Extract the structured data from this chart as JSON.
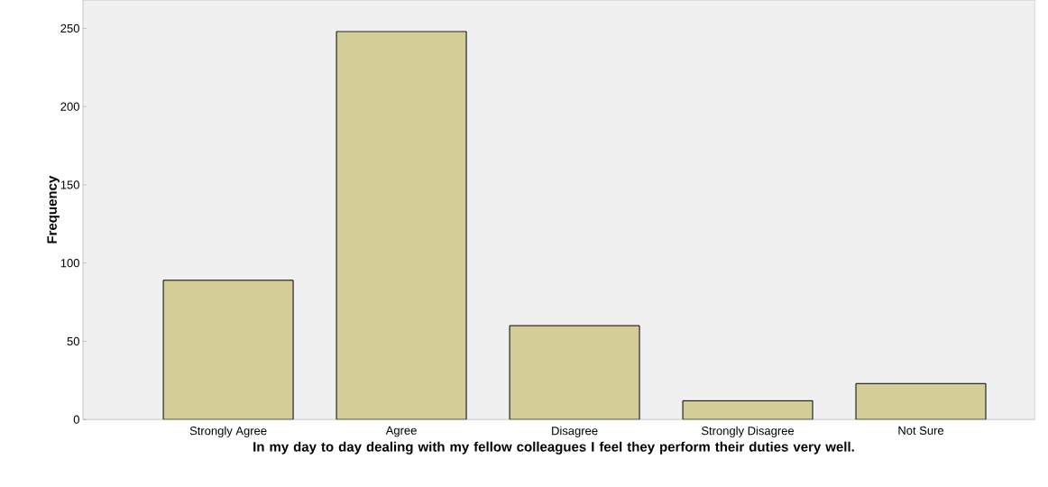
{
  "chart_data": {
    "type": "bar",
    "xlabel": "In my day to day dealing with my fellow colleagues I feel they perform their duties very well.",
    "ylabel": "Frequency",
    "categories": [
      "Strongly Agree",
      "Agree",
      "Disagree",
      "Strongly Disagree",
      "Not Sure"
    ],
    "values": [
      89,
      248,
      60,
      12,
      23
    ],
    "color": "#d3ce97",
    "ylim": [
      0,
      268
    ],
    "yticks": [
      0,
      50,
      100,
      150,
      200,
      250
    ],
    "grid": false
  }
}
